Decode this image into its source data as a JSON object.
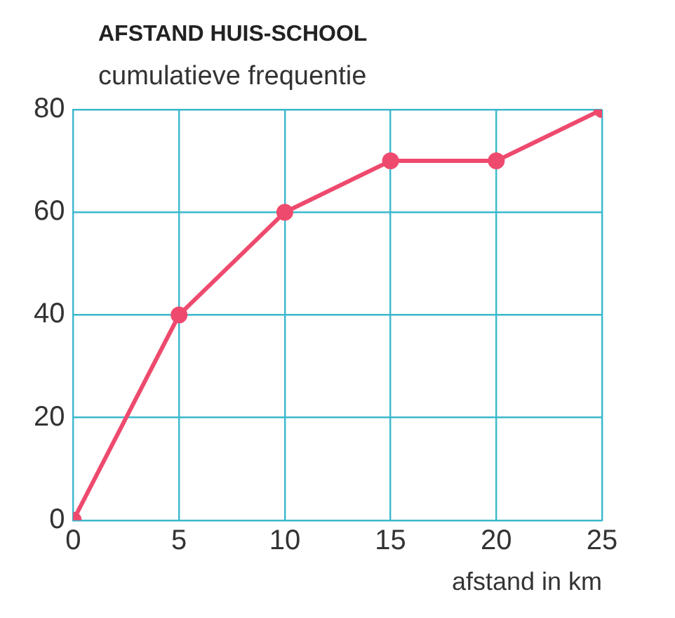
{
  "chart_data": {
    "type": "line",
    "title": "AFSTAND HUIS-SCHOOL",
    "ylabel": "cumulatieve frequentie",
    "xlabel": "afstand in km",
    "x": [
      0,
      5,
      10,
      15,
      20,
      25
    ],
    "values": [
      0,
      40,
      60,
      70,
      70,
      80
    ],
    "color": "#ee4a6e",
    "xlim": [
      0,
      25
    ],
    "xticks": [
      0,
      5,
      10,
      15,
      20,
      25
    ],
    "ylim": [
      0,
      80
    ],
    "yticks": [
      0,
      20,
      40,
      60,
      80
    ],
    "grid": true,
    "marker": "circle",
    "line_style": "solid"
  }
}
